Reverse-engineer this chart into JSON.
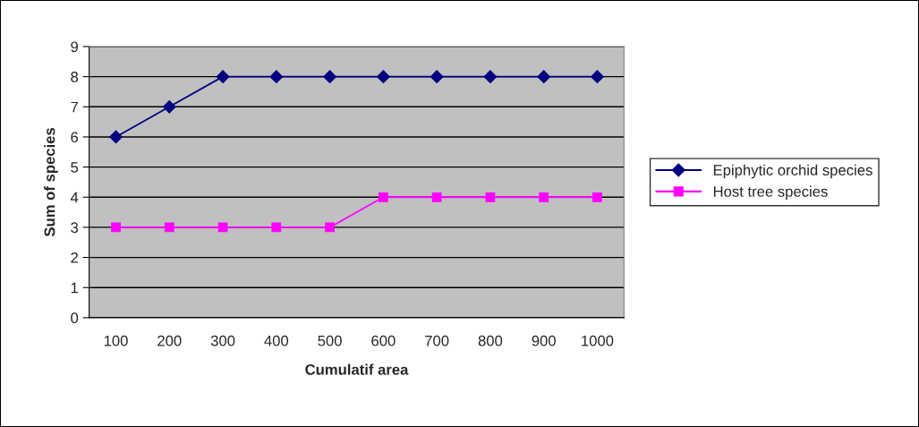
{
  "chart_data": {
    "type": "line",
    "xlabel": "Cumulatif area",
    "ylabel": "Sum of species",
    "categories": [
      "100",
      "200",
      "300",
      "400",
      "500",
      "600",
      "700",
      "800",
      "900",
      "1000"
    ],
    "series": [
      {
        "name": "Epiphytic orchid species",
        "color": "#000080",
        "marker": "diamond",
        "values": [
          6,
          7,
          8,
          8,
          8,
          8,
          8,
          8,
          8,
          8
        ]
      },
      {
        "name": "Host tree species",
        "color": "#ff00ff",
        "marker": "square",
        "values": [
          3,
          3,
          3,
          3,
          3,
          4,
          4,
          4,
          4,
          4
        ]
      }
    ],
    "ylim": [
      0,
      9
    ],
    "yticks": [
      0,
      1,
      2,
      3,
      4,
      5,
      6,
      7,
      8,
      9
    ],
    "grid": "y",
    "legend": "right",
    "line_style": "solid"
  }
}
